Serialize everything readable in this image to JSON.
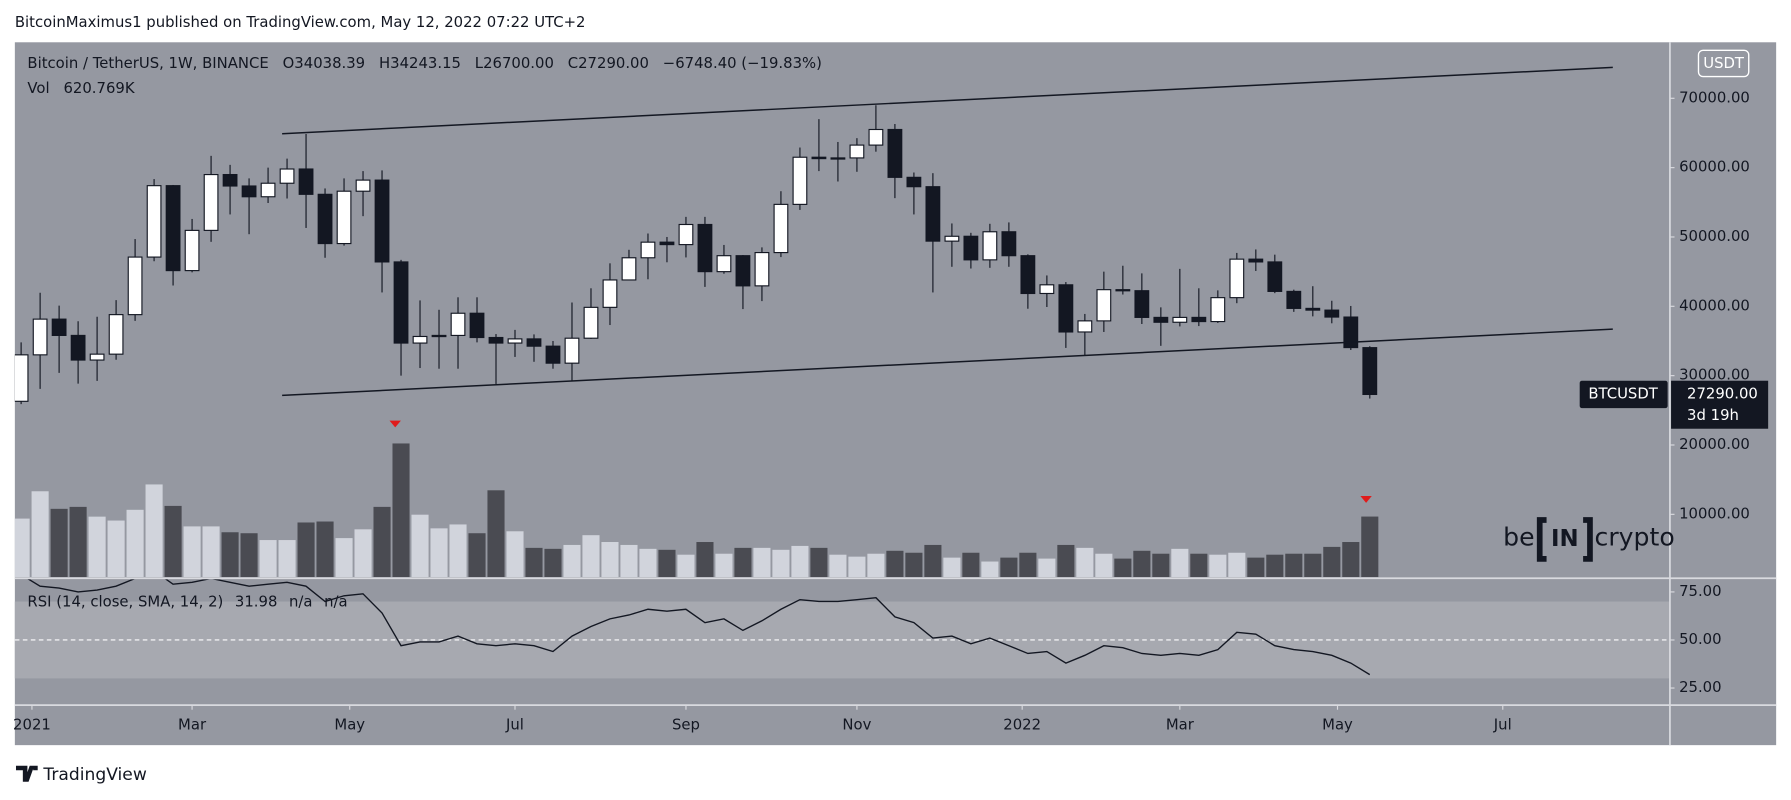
{
  "page": {
    "header": "BitcoinMaximus1 published on TradingView.com, May 12, 2022 07:22 UTC+2",
    "footer": "TradingView",
    "logo": {
      "left": "be",
      "box": "IN",
      "right": "crypto"
    },
    "currency_button": "USDT"
  },
  "chart_data": {
    "type": "candlestick",
    "legend": {
      "symbol": "Bitcoin / TetherUS, 1W, BINANCE",
      "o": "O",
      "open": "34038.39",
      "h": "H",
      "high": "34243.15",
      "l": "L",
      "low": "26700.00",
      "c": "C",
      "close": "27290.00",
      "change": "−6748.40 (−19.83%)",
      "vol": "Vol",
      "vol_value": "620.769K",
      "rsi": "RSI (14, close, SMA, 14, 2)",
      "rsi_value": "31.98",
      "rsi_na1": "n/a",
      "rsi_na2": "n/a"
    },
    "last_price": {
      "symbol": "BTCUSDT",
      "price": "27290.00",
      "countdown": "3d 19h"
    },
    "xlim": [
      -0.33,
      86.8
    ],
    "xticks": [
      {
        "value": 0.57,
        "label": "2021"
      },
      {
        "value": 9,
        "label": "Mar"
      },
      {
        "value": 17.3,
        "label": "May"
      },
      {
        "value": 26,
        "label": "Jul"
      },
      {
        "value": 35,
        "label": "Sep"
      },
      {
        "value": 44,
        "label": "Nov"
      },
      {
        "value": 52.7,
        "label": "2022"
      },
      {
        "value": 61,
        "label": "Mar"
      },
      {
        "value": 69.3,
        "label": "May"
      },
      {
        "value": 78,
        "label": "Jul"
      }
    ],
    "ylim": [
      941,
      78077
    ],
    "yticks": [
      {
        "value": 10000,
        "label": "10000.00"
      },
      {
        "value": 20000,
        "label": "20000.00"
      },
      {
        "value": 30000,
        "label": "30000.00"
      },
      {
        "value": 40000,
        "label": "40000.00"
      },
      {
        "value": 50000,
        "label": "50000.00"
      },
      {
        "value": 60000,
        "label": "60000.00"
      },
      {
        "value": 70000,
        "label": "70000.00"
      }
    ],
    "candles": [
      [
        26300,
        34800,
        25900,
        33000
      ],
      [
        33000,
        41950,
        28100,
        38150
      ],
      [
        38150,
        40100,
        30400,
        35800
      ],
      [
        35800,
        37850,
        28850,
        32250
      ],
      [
        32250,
        38500,
        29250,
        33100
      ],
      [
        33100,
        40900,
        32300,
        38800
      ],
      [
        38800,
        49700,
        37900,
        47100
      ],
      [
        47100,
        58350,
        46500,
        57400
      ],
      [
        57400,
        57500,
        43000,
        45150
      ],
      [
        45150,
        52600,
        44900,
        50950
      ],
      [
        50950,
        61700,
        49300,
        59000
      ],
      [
        59000,
        60400,
        53250,
        57350
      ],
      [
        57350,
        58450,
        50400,
        55800
      ],
      [
        55800,
        60000,
        54900,
        57750
      ],
      [
        57750,
        61300,
        55550,
        59800
      ],
      [
        59800,
        64850,
        51300,
        56150
      ],
      [
        56150,
        57000,
        47000,
        49050
      ],
      [
        49050,
        58450,
        48750,
        56600
      ],
      [
        56600,
        59500,
        53000,
        58200
      ],
      [
        58200,
        59600,
        42000,
        46400
      ],
      [
        46400,
        46700,
        30000,
        34700
      ],
      [
        34700,
        40850,
        31100,
        35650
      ],
      [
        35650,
        39500,
        31000,
        35800
      ],
      [
        35800,
        41300,
        31000,
        39000
      ],
      [
        39000,
        41300,
        34800,
        35500
      ],
      [
        35500,
        36000,
        28800,
        34700
      ],
      [
        34700,
        36600,
        32700,
        35300
      ],
      [
        35300,
        35950,
        32000,
        34250
      ],
      [
        34250,
        35000,
        31000,
        31800
      ],
      [
        31800,
        40550,
        29300,
        35400
      ],
      [
        35400,
        42600,
        35300,
        39850
      ],
      [
        39850,
        46200,
        37300,
        43800
      ],
      [
        43800,
        48150,
        43800,
        47000
      ],
      [
        47000,
        50500,
        43900,
        49250
      ],
      [
        49250,
        50000,
        46350,
        48900
      ],
      [
        48900,
        52900,
        47050,
        51800
      ],
      [
        51800,
        52900,
        42800,
        45000
      ],
      [
        45000,
        48850,
        44700,
        47300
      ],
      [
        47300,
        47400,
        39600,
        42950
      ],
      [
        42950,
        48500,
        40750,
        47750
      ],
      [
        47750,
        56600,
        47100,
        54700
      ],
      [
        54700,
        62900,
        53900,
        61500
      ],
      [
        61500,
        67000,
        59500,
        61300
      ],
      [
        61300,
        63700,
        58000,
        61400
      ],
      [
        61400,
        64250,
        59400,
        63250
      ],
      [
        63250,
        69000,
        62300,
        65500
      ],
      [
        65500,
        66300,
        55600,
        58600
      ],
      [
        58600,
        59300,
        53250,
        57250
      ],
      [
        57250,
        59200,
        42000,
        49400
      ],
      [
        49400,
        51950,
        45700,
        50100
      ],
      [
        50100,
        50600,
        45450,
        46700
      ],
      [
        46700,
        51900,
        45550,
        50750
      ],
      [
        50750,
        52100,
        45700,
        47300
      ],
      [
        47300,
        47500,
        39650,
        41850
      ],
      [
        41850,
        44450,
        39900,
        43100
      ],
      [
        43100,
        43500,
        34000,
        36300
      ],
      [
        36300,
        38900,
        32900,
        37900
      ],
      [
        37900,
        45000,
        36300,
        42400
      ],
      [
        42400,
        45850,
        41700,
        42250
      ],
      [
        42250,
        44750,
        37450,
        38400
      ],
      [
        38400,
        39850,
        34300,
        37700
      ],
      [
        37700,
        45400,
        37100,
        38400
      ],
      [
        38400,
        42600,
        37150,
        37800
      ],
      [
        37800,
        42300,
        37600,
        41250
      ],
      [
        41250,
        47700,
        40450,
        46800
      ],
      [
        46800,
        48200,
        45100,
        46400
      ],
      [
        46400,
        47450,
        41900,
        42150
      ],
      [
        42150,
        42400,
        39200,
        39700
      ],
      [
        39700,
        42900,
        38550,
        39450
      ],
      [
        39450,
        40800,
        37550,
        38450
      ],
      [
        38450,
        40050,
        33700,
        34050
      ],
      [
        34038.39,
        34243.15,
        26700,
        27290
      ]
    ],
    "volume_ylim": [
      0,
      5481
    ],
    "volumes": [
      600,
      880,
      700,
      720,
      620,
      580,
      690,
      950,
      730,
      520,
      520,
      460,
      450,
      380,
      380,
      560,
      570,
      400,
      490,
      720,
      1370,
      640,
      500,
      540,
      450,
      890,
      470,
      300,
      290,
      330,
      430,
      360,
      330,
      290,
      280,
      230,
      360,
      240,
      300,
      300,
      280,
      320,
      300,
      230,
      210,
      240,
      270,
      250,
      330,
      200,
      250,
      160,
      200,
      250,
      190,
      330,
      300,
      240,
      190,
      270,
      240,
      290,
      240,
      230,
      250,
      200,
      230,
      240,
      240,
      310,
      360,
      620.769
    ],
    "rsi_ylim": [
      16.1,
      81.5
    ],
    "rsi_yticks": [
      {
        "value": 25,
        "label": "25.00"
      },
      {
        "value": 50,
        "label": "50.00"
      },
      {
        "value": 75,
        "label": "75.00"
      }
    ],
    "rsi_band": [
      30,
      70
    ],
    "rsi_mid": 50,
    "rsi": [
      84,
      78,
      77,
      75,
      76,
      78,
      82,
      86,
      79,
      80,
      82,
      80,
      78,
      79,
      80,
      78,
      70,
      73,
      74,
      64,
      47,
      49,
      49,
      52,
      48,
      47,
      48,
      47,
      44,
      52,
      57,
      61,
      63,
      66,
      65,
      66,
      59,
      61,
      55,
      60,
      66,
      71,
      70,
      70,
      71,
      72,
      62,
      59,
      51,
      52,
      48,
      51,
      47,
      43,
      44,
      38,
      42,
      47,
      46,
      43,
      42,
      43,
      42,
      45,
      54,
      53,
      47,
      45,
      44,
      42,
      38,
      32
    ],
    "colors": {
      "up": "#ffffff",
      "down": "#131722",
      "outline": "#131722",
      "volume_up": "#d1d4dc",
      "volume_down": "#4a4b52",
      "rsi": "#131722",
      "pane": "#9598a1",
      "band": "#a7a9b0"
    }
  }
}
